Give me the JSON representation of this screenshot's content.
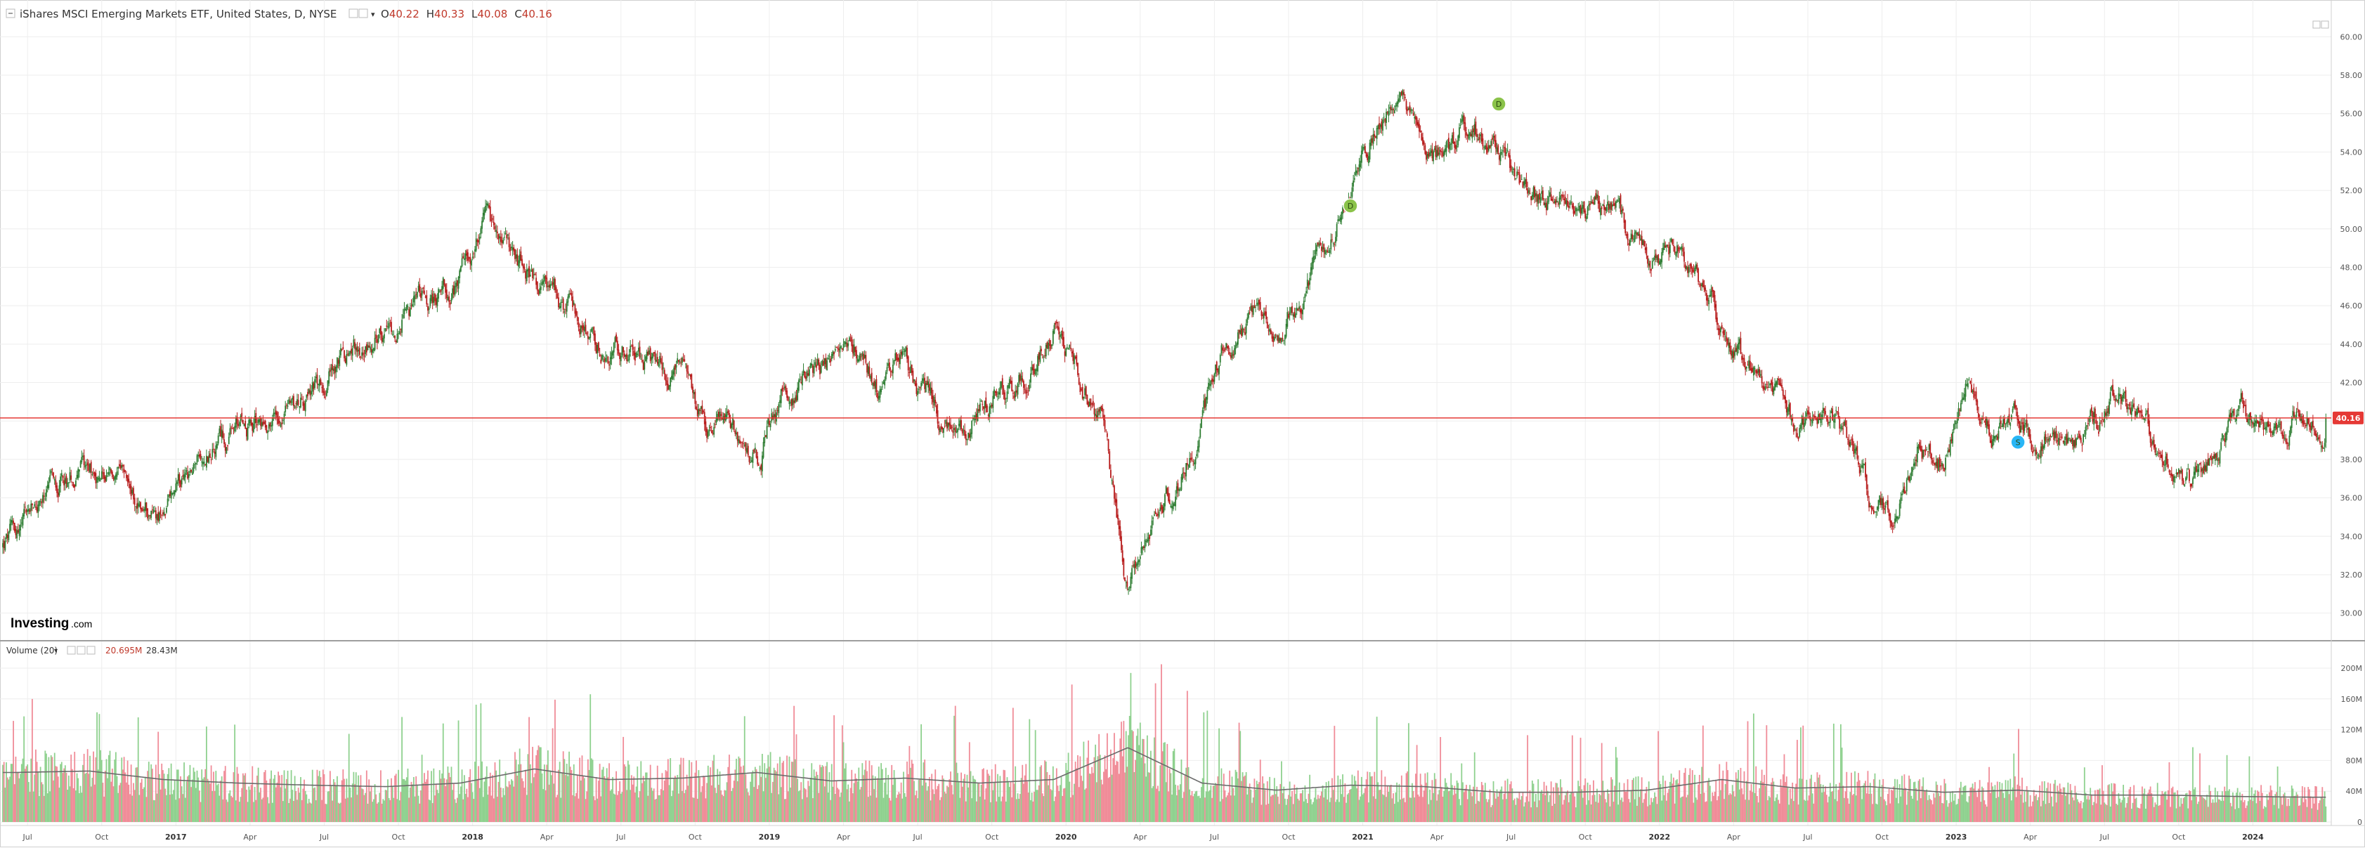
{
  "header": {
    "symbol_title": "iShares MSCI Emerging Markets ETF, United States, D, NYSE",
    "open_label": "O",
    "open_value": "40.22",
    "high_label": "H",
    "high_value": "40.33",
    "low_label": "L",
    "low_value": "40.08",
    "close_label": "C",
    "close_value": "40.16",
    "dropdown_symbol": "▾"
  },
  "volume_header": {
    "title": "Volume (20)",
    "dropdown_symbol": "▾",
    "value_1": "20.695M",
    "value_2": "28.43M"
  },
  "brand": {
    "name": "Investing",
    "suffix": ".com"
  },
  "current_price_label": "40.16",
  "colors": {
    "up": "#2e7d32",
    "down": "#b71c1c",
    "volume_up": "#8fd18f",
    "volume_down": "#f08c98",
    "volume_ma": "#6b6b6b",
    "price_line": "#e53935",
    "event_dividend": "#8bc34a",
    "event_split": "#29b6f6"
  },
  "icons": {
    "collapse": "minus-box-icon",
    "settings": "gear-icon",
    "close": "close-icon",
    "eye": "eye-icon"
  },
  "chart_data": [
    {
      "type": "candlestick",
      "title": "iShares MSCI Emerging Markets ETF, United States, D, NYSE",
      "ylim": [
        29,
        61
      ],
      "y_ticks": [
        "60.00",
        "58.00",
        "56.00",
        "54.00",
        "52.00",
        "50.00",
        "48.00",
        "46.00",
        "44.00",
        "42.00",
        "40.00",
        "38.00",
        "36.00",
        "34.00",
        "32.00",
        "30.00"
      ],
      "x_ticks": [
        "Jul",
        "Oct",
        "2017",
        "Apr",
        "Jul",
        "Oct",
        "2018",
        "Apr",
        "Jul",
        "Oct",
        "2019",
        "Apr",
        "Jul",
        "Oct",
        "2020",
        "Apr",
        "Jul",
        "Oct",
        "2021",
        "Apr",
        "Jul",
        "Oct",
        "2022",
        "Apr",
        "Jul",
        "Oct",
        "2023",
        "Apr",
        "Jul",
        "Oct",
        "2024"
      ],
      "x_range": [
        "2016-06",
        "2024-03"
      ],
      "last_close": 40.16,
      "grid": true,
      "event_markers": [
        {
          "label": "D",
          "date": "2020-12",
          "price": 51.2
        },
        {
          "label": "D",
          "date": "2021-06",
          "price": 56.5
        },
        {
          "label": "S",
          "date": "2023-03",
          "price": 38.9
        }
      ],
      "monthly_close": {
        "dates": [
          "2016-06",
          "2016-07",
          "2016-08",
          "2016-09",
          "2016-10",
          "2016-11",
          "2016-12",
          "2017-01",
          "2017-02",
          "2017-03",
          "2017-04",
          "2017-05",
          "2017-06",
          "2017-07",
          "2017-08",
          "2017-09",
          "2017-10",
          "2017-11",
          "2017-12",
          "2018-01",
          "2018-02",
          "2018-03",
          "2018-04",
          "2018-05",
          "2018-06",
          "2018-07",
          "2018-08",
          "2018-09",
          "2018-10",
          "2018-11",
          "2018-12",
          "2019-01",
          "2019-02",
          "2019-03",
          "2019-04",
          "2019-05",
          "2019-06",
          "2019-07",
          "2019-08",
          "2019-09",
          "2019-10",
          "2019-11",
          "2019-12",
          "2020-01",
          "2020-02",
          "2020-03",
          "2020-04",
          "2020-05",
          "2020-06",
          "2020-07",
          "2020-08",
          "2020-09",
          "2020-10",
          "2020-11",
          "2020-12",
          "2021-01",
          "2021-02",
          "2021-03",
          "2021-04",
          "2021-05",
          "2021-06",
          "2021-07",
          "2021-08",
          "2021-09",
          "2021-10",
          "2021-11",
          "2021-12",
          "2022-01",
          "2022-02",
          "2022-03",
          "2022-04",
          "2022-05",
          "2022-06",
          "2022-07",
          "2022-08",
          "2022-09",
          "2022-10",
          "2022-11",
          "2022-12",
          "2023-01",
          "2023-02",
          "2023-03",
          "2023-04",
          "2023-05",
          "2023-06",
          "2023-07",
          "2023-08",
          "2023-09",
          "2023-10",
          "2023-11",
          "2023-12",
          "2024-01",
          "2024-02",
          "2024-03"
        ],
        "values": [
          33.5,
          35.5,
          37.0,
          37.8,
          37.0,
          35.5,
          35.2,
          37.0,
          38.5,
          39.5,
          40.0,
          41.0,
          41.5,
          43.0,
          44.0,
          44.5,
          45.5,
          46.5,
          47.5,
          50.0,
          48.5,
          47.5,
          46.5,
          45.0,
          43.5,
          44.0,
          42.5,
          42.5,
          39.5,
          39.5,
          38.0,
          41.5,
          42.5,
          43.0,
          44.0,
          41.5,
          43.0,
          41.0,
          39.0,
          40.5,
          42.0,
          42.5,
          45.0,
          42.5,
          40.0,
          31.0,
          35.0,
          36.5,
          40.0,
          44.0,
          45.5,
          45.0,
          46.5,
          49.5,
          51.5,
          55.5,
          57.5,
          53.5,
          54.5,
          55.0,
          54.0,
          52.0,
          51.5,
          50.5,
          51.0,
          50.0,
          48.5,
          49.0,
          47.5,
          45.0,
          42.5,
          41.5,
          39.5,
          40.5,
          39.5,
          36.0,
          35.0,
          39.0,
          38.0,
          42.0,
          39.5,
          40.0,
          39.0,
          39.0,
          40.0,
          41.5,
          39.5,
          38.5,
          36.5,
          38.5,
          40.5,
          39.5,
          40.0,
          40.16
        ]
      }
    },
    {
      "type": "bar",
      "title": "Volume (20)",
      "ylim": [
        0,
        210
      ],
      "y_unit": "M",
      "y_ticks": [
        "200M",
        "160M",
        "120M",
        "80M",
        "40M",
        "0"
      ],
      "series": [
        {
          "name": "Volume",
          "type": "bar"
        },
        {
          "name": "MA 20",
          "type": "line"
        }
      ],
      "last_values": [
        "20.695M",
        "28.43M"
      ],
      "x_range": [
        "2016-06",
        "2024-03"
      ],
      "monthly_avg_volume_M": {
        "dates": [
          "2016-06",
          "2016-09",
          "2016-12",
          "2017-03",
          "2017-06",
          "2017-09",
          "2017-12",
          "2018-03",
          "2018-06",
          "2018-09",
          "2018-12",
          "2019-03",
          "2019-06",
          "2019-09",
          "2019-12",
          "2020-03",
          "2020-06",
          "2020-09",
          "2020-12",
          "2021-03",
          "2021-06",
          "2021-09",
          "2021-12",
          "2022-03",
          "2022-06",
          "2022-09",
          "2022-12",
          "2023-03",
          "2023-06",
          "2023-09",
          "2023-12",
          "2024-03"
        ],
        "values": [
          70,
          72,
          60,
          55,
          52,
          50,
          55,
          75,
          60,
          62,
          70,
          58,
          62,
          55,
          60,
          105,
          55,
          45,
          52,
          50,
          42,
          42,
          45,
          60,
          48,
          50,
          42,
          45,
          38,
          38,
          36,
          35
        ]
      }
    }
  ]
}
